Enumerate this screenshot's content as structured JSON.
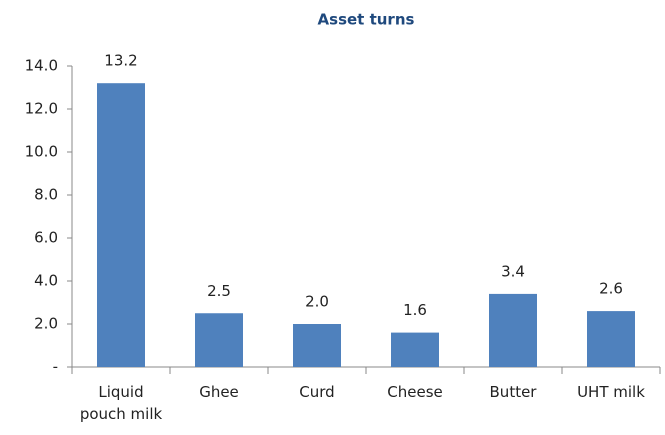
{
  "chart_data": {
    "type": "bar",
    "title": "Asset turns",
    "categories": [
      "Liquid pouch milk",
      "Ghee",
      "Curd",
      "Cheese",
      "Butter",
      "UHT milk"
    ],
    "values": [
      13.2,
      2.5,
      2.0,
      1.6,
      3.4,
      2.6
    ],
    "value_labels": [
      "13.2",
      "2.5",
      "2.0",
      "1.6",
      "3.4",
      "2.6"
    ],
    "color": "#4f81bd",
    "ylim": [
      0,
      14
    ],
    "yticks": [
      {
        "value": 0,
        "label": "-"
      },
      {
        "value": 2,
        "label": "2.0"
      },
      {
        "value": 4,
        "label": "4.0"
      },
      {
        "value": 6,
        "label": "6.0"
      },
      {
        "value": 8,
        "label": "8.0"
      },
      {
        "value": 10,
        "label": "10.0"
      },
      {
        "value": 12,
        "label": "12.0"
      },
      {
        "value": 14,
        "label": "14.0"
      }
    ]
  }
}
